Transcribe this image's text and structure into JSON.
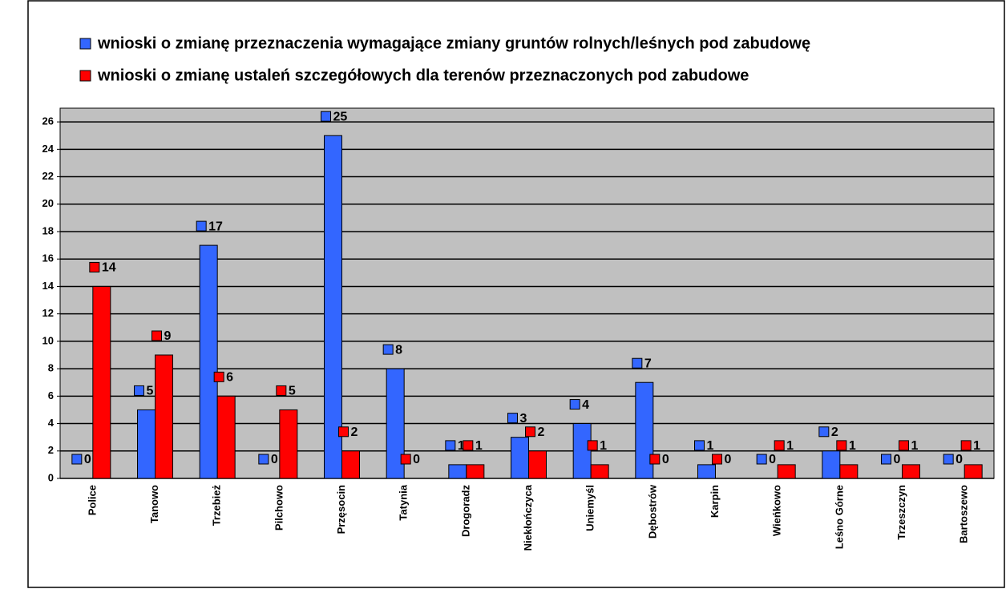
{
  "chart_data": {
    "type": "bar",
    "categories": [
      "Police",
      "Tanowo",
      "Trzebież",
      "Pilchowo",
      "Przęsocin",
      "Tatynia",
      "Drogoradz",
      "Niekłończyca",
      "Uniemyśl",
      "Dębostrów",
      "Karpin",
      "Wieńkowo",
      "Leśno Górne",
      "Trzeszczyn",
      "Bartoszewo"
    ],
    "series": [
      {
        "name": "wnioski o zmianę przeznaczenia wymagające zmiany gruntów rolnych/leśnych pod zabudowę",
        "color": "#3366ff",
        "values": [
          0,
          5,
          17,
          0,
          25,
          8,
          1,
          3,
          4,
          7,
          1,
          0,
          2,
          0,
          0
        ]
      },
      {
        "name": "wnioski o zmianę ustaleń szczegółowych dla terenów przeznaczonych pod zabudowe",
        "color": "#ff0000",
        "values": [
          14,
          9,
          6,
          5,
          2,
          0,
          1,
          2,
          1,
          0,
          0,
          1,
          1,
          1,
          1
        ]
      }
    ],
    "ylim": [
      0,
      27
    ],
    "yticks": [
      0,
      2,
      4,
      6,
      8,
      10,
      12,
      14,
      16,
      18,
      20,
      22,
      24,
      26
    ],
    "grid": true
  }
}
